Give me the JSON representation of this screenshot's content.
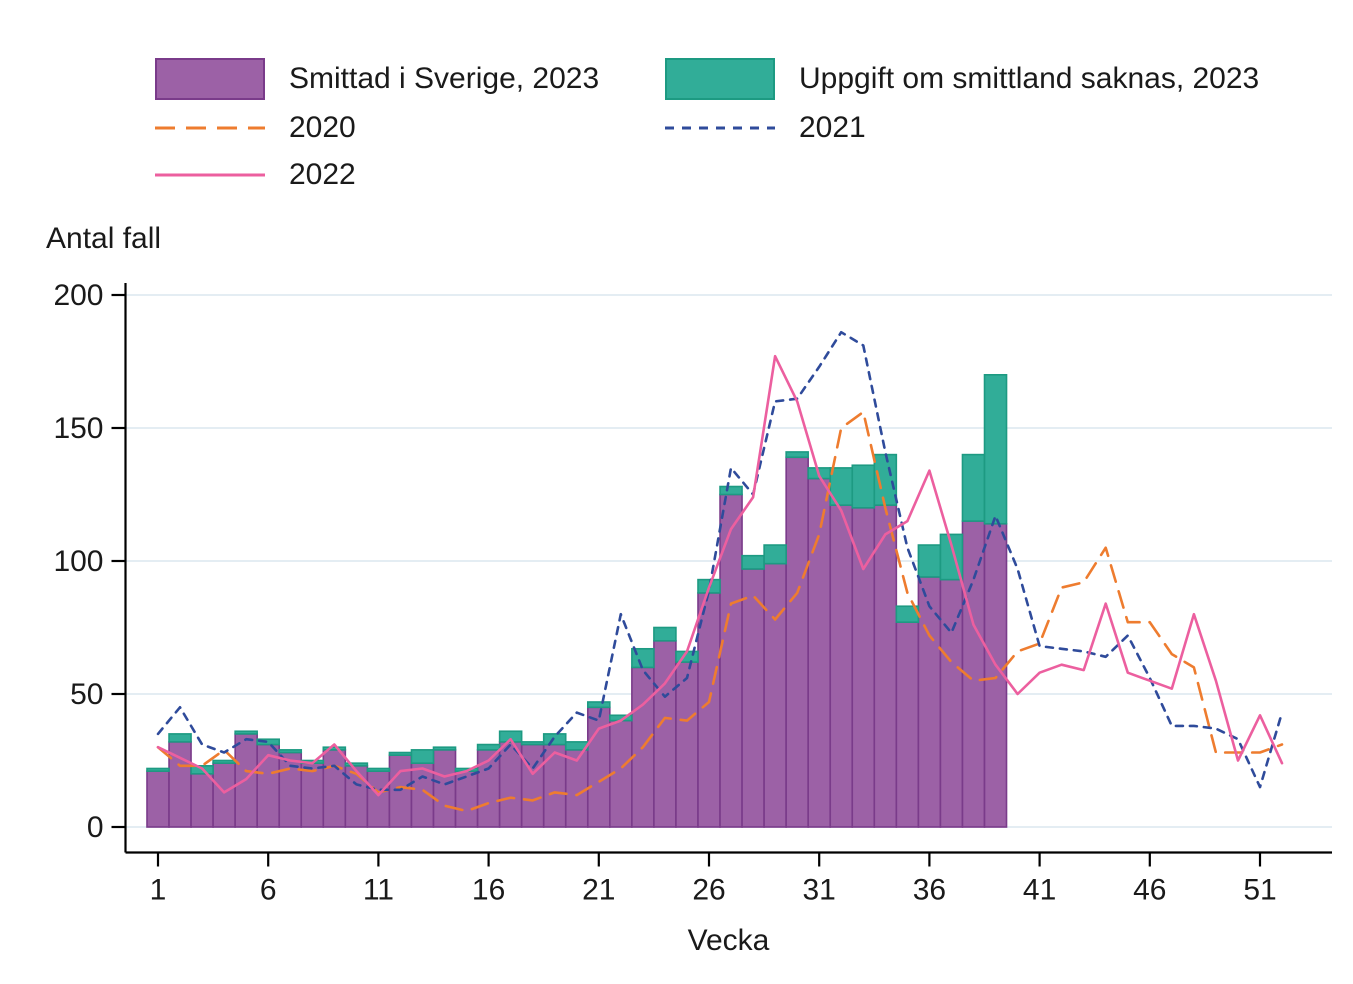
{
  "chart_data": {
    "type": "bar+line",
    "title": "",
    "ylabel": "Antal fall",
    "xlabel": "Vecka",
    "ylim": [
      0,
      200
    ],
    "y_ticks": [
      0,
      50,
      100,
      150,
      200
    ],
    "x_ticks": [
      1,
      6,
      11,
      16,
      21,
      26,
      31,
      36,
      41,
      46,
      51
    ],
    "x_range_weeks": 52,
    "grid": "horizontal-light",
    "legend_position": "top-two-columns",
    "colors": {
      "bar_sweden_fill": "#9c61a6",
      "bar_sweden_border": "#7a3b8a",
      "bar_unknown_fill": "#31ad98",
      "bar_unknown_border": "#1d9a82",
      "line_2020": "#ee7c2f",
      "line_2021": "#2f4b9b",
      "line_2022": "#ec5f9f",
      "gridline": "#e4edf3",
      "axis": "#000000",
      "text": "#1a1a1a"
    },
    "bar_series": [
      {
        "name": "Smittad i Sverige, 2023",
        "weeks_start": 1,
        "values": [
          21,
          32,
          20,
          24,
          35,
          31,
          28,
          24,
          29,
          23,
          21,
          27,
          24,
          29,
          21,
          29,
          32,
          31,
          31,
          29,
          45,
          40,
          60,
          70,
          62,
          88,
          125,
          97,
          99,
          139,
          131,
          121,
          120,
          121,
          77,
          94,
          93,
          115,
          114
        ]
      },
      {
        "name": "Uppgift om smittland saknas, 2023",
        "weeks_start": 1,
        "stacked_on": "Smittad i Sverige, 2023",
        "values": [
          1,
          3,
          3,
          1,
          1,
          2,
          1,
          1,
          1,
          1,
          1,
          1,
          5,
          1,
          1,
          2,
          4,
          1,
          4,
          3,
          2,
          2,
          7,
          5,
          4,
          5,
          3,
          5,
          7,
          2,
          4,
          14,
          16,
          19,
          6,
          12,
          17,
          25,
          56
        ]
      }
    ],
    "line_series": [
      {
        "name": "2020",
        "dash": "long",
        "weeks_start": 1,
        "values": [
          30,
          23,
          23,
          29,
          21,
          20,
          22,
          21,
          23,
          20,
          13,
          15,
          14,
          8,
          6,
          9,
          11,
          10,
          13,
          12,
          17,
          22,
          30,
          41,
          40,
          47,
          84,
          87,
          78,
          88,
          110,
          150,
          156,
          120,
          88,
          72,
          62,
          55,
          56,
          66,
          69,
          90,
          92,
          105,
          77,
          77,
          65,
          60,
          28,
          28,
          28,
          31
        ]
      },
      {
        "name": "2021",
        "dash": "short",
        "weeks_start": 1,
        "values": [
          35,
          45,
          31,
          28,
          33,
          32,
          23,
          22,
          23,
          16,
          14,
          14,
          19,
          16,
          19,
          22,
          31,
          22,
          34,
          43,
          40,
          80,
          59,
          49,
          56,
          89,
          135,
          125,
          160,
          161,
          173,
          186,
          181,
          141,
          105,
          83,
          73,
          93,
          117,
          97,
          68,
          67,
          66,
          64,
          72,
          56,
          38,
          38,
          37,
          33,
          15,
          43
        ]
      },
      {
        "name": "2022",
        "dash": "solid",
        "weeks_start": 1,
        "values": [
          30,
          26,
          22,
          13,
          18,
          27,
          25,
          24,
          31,
          21,
          12,
          21,
          22,
          19,
          21,
          25,
          33,
          20,
          28,
          25,
          37,
          40,
          46,
          54,
          66,
          90,
          112,
          124,
          177,
          160,
          132,
          119,
          97,
          110,
          115,
          134,
          106,
          76,
          61,
          50,
          58,
          61,
          59,
          84,
          58,
          55,
          52,
          80,
          55,
          25,
          42,
          24
        ]
      }
    ],
    "legend": {
      "items": [
        {
          "label": "Smittad i Sverige, 2023",
          "swatch": "rect",
          "color_key": "bar_sweden_fill",
          "border_key": "bar_sweden_border"
        },
        {
          "label": "Uppgift om smittland saknas, 2023",
          "swatch": "rect",
          "color_key": "bar_unknown_fill",
          "border_key": "bar_unknown_border"
        },
        {
          "label": "2020",
          "swatch": "line-long-dash",
          "color_key": "line_2020"
        },
        {
          "label": "2021",
          "swatch": "line-short-dash",
          "color_key": "line_2021"
        },
        {
          "label": "2022",
          "swatch": "line-solid",
          "color_key": "line_2022"
        }
      ]
    }
  }
}
